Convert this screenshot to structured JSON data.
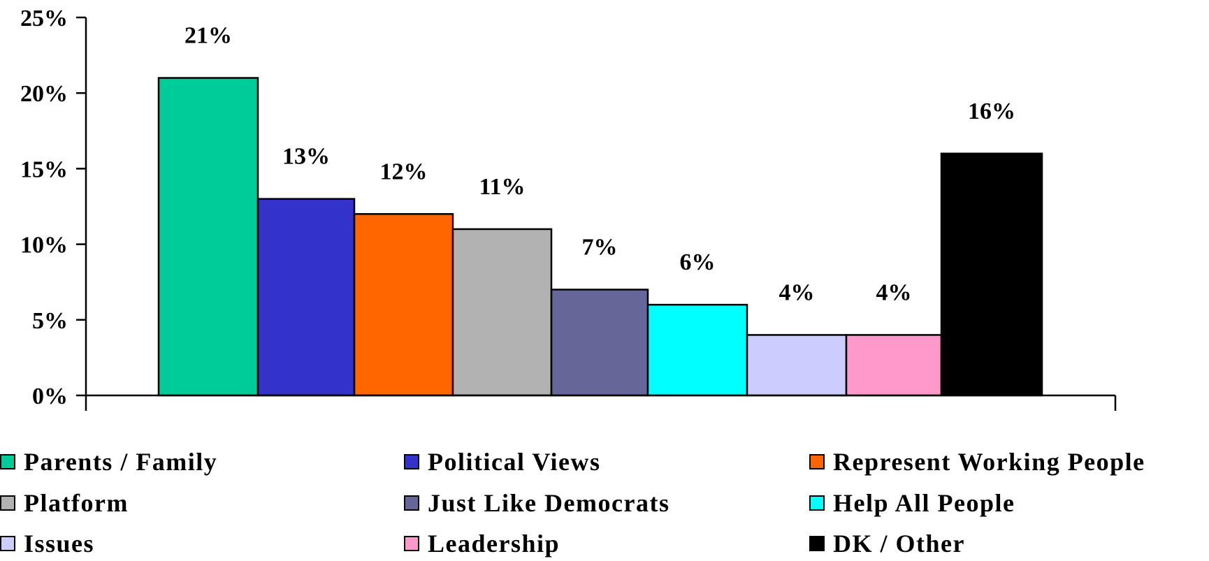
{
  "chart_data": {
    "type": "bar",
    "categories": [
      "Parents / Family",
      "Political Views",
      "Represent Working People",
      "Platform",
      "Just Like Democrats",
      "Help All People",
      "Issues",
      "Leadership",
      "DK / Other"
    ],
    "values": [
      21,
      13,
      12,
      11,
      7,
      6,
      4,
      4,
      16
    ],
    "data_labels": [
      "21%",
      "13%",
      "12%",
      "11%",
      "7%",
      "6%",
      "4%",
      "4%",
      "16%"
    ],
    "colors": [
      "#00CC99",
      "#3333CC",
      "#FF6600",
      "#B2B2B2",
      "#666699",
      "#00FFFF",
      "#CCCCFF",
      "#FF99CC",
      "#000000"
    ],
    "ylim": [
      0,
      25
    ],
    "yticks": [
      0,
      5,
      10,
      15,
      20,
      25
    ],
    "ytick_labels": [
      "0%",
      "5%",
      "10%",
      "15%",
      "20%",
      "25%"
    ],
    "title": "",
    "xlabel": "",
    "ylabel": "",
    "grid": false,
    "legend_position": "bottom"
  }
}
